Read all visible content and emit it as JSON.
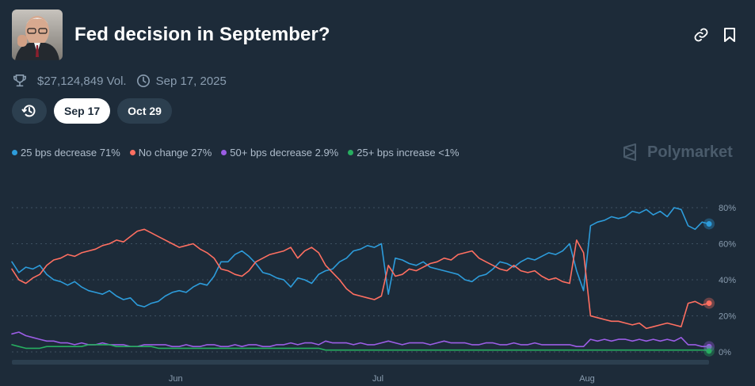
{
  "market": {
    "title": "Fed decision in September?",
    "volume": "$27,124,849 Vol.",
    "end_date": "Sep 17, 2025"
  },
  "tabs": [
    {
      "label": "Sep 17",
      "active": true
    },
    {
      "label": "Oct 29",
      "active": false
    }
  ],
  "legend": [
    {
      "label": "25 bps decrease 71%",
      "color": "#2d9cdb"
    },
    {
      "label": "No change 27%",
      "color": "#ff6f61"
    },
    {
      "label": "50+ bps decrease 2.9%",
      "color": "#9b5de5"
    },
    {
      "label": "25+ bps increase <1%",
      "color": "#27ae60"
    }
  ],
  "brand": "Polymarket",
  "icons": {
    "volume": "trophy-icon",
    "date": "clock-icon",
    "history": "history-icon",
    "link": "link-icon",
    "bookmark": "bookmark-icon",
    "brand": "polymarket-logo-icon"
  },
  "chart_data": {
    "type": "line",
    "x_ticks": [
      "Jun",
      "Jul",
      "Aug"
    ],
    "y_ticks": [
      "80%",
      "60%",
      "40%",
      "20%",
      "0%"
    ],
    "ylim": [
      0,
      80
    ],
    "grid": "horizontal dotted",
    "x_index_range": [
      0,
      100
    ],
    "x_tick_positions": [
      23.5,
      52.5,
      82.5
    ],
    "series": [
      {
        "name": "25 bps decrease",
        "color": "#2d9cdb",
        "final_value": 71,
        "x": [
          0,
          1,
          2,
          3,
          4,
          5,
          6,
          7,
          8,
          9,
          10,
          11,
          12,
          13,
          14,
          15,
          16,
          17,
          18,
          19,
          20,
          21,
          22,
          23,
          24,
          25,
          26,
          27,
          28,
          29,
          30,
          31,
          32,
          33,
          34,
          35,
          36,
          37,
          38,
          39,
          40,
          41,
          42,
          43,
          44,
          45,
          46,
          47,
          48,
          49,
          50,
          51,
          52,
          53,
          54,
          55,
          56,
          57,
          58,
          59,
          60,
          61,
          62,
          63,
          64,
          65,
          66,
          67,
          68,
          69,
          70,
          71,
          72,
          73,
          74,
          75,
          76,
          77,
          78,
          79,
          80,
          81,
          82,
          83,
          84,
          85,
          86,
          87,
          88,
          89,
          90,
          91,
          92,
          93,
          94,
          95,
          96,
          97,
          98,
          99,
          100
        ],
        "values": [
          50,
          44,
          47,
          46,
          48,
          43,
          40,
          39,
          37,
          39,
          36,
          34,
          33,
          32,
          34,
          31,
          29,
          30,
          26,
          25,
          27,
          28,
          31,
          33,
          34,
          33,
          36,
          38,
          37,
          42,
          50,
          50,
          54,
          56,
          53,
          49,
          44,
          43,
          41,
          40,
          36,
          41,
          40,
          38,
          43,
          45,
          46,
          50,
          52,
          56,
          57,
          59,
          58,
          60,
          32,
          52,
          51,
          49,
          48,
          50,
          47,
          46,
          45,
          44,
          43,
          40,
          39,
          42,
          43,
          46,
          50,
          49,
          47,
          50,
          52,
          51,
          53,
          55,
          54,
          56,
          60,
          45,
          34,
          70,
          72,
          73,
          75,
          74,
          75,
          78,
          77,
          79,
          76,
          78,
          75,
          80,
          79,
          70,
          68,
          72,
          71
        ]
      },
      {
        "name": "No change",
        "color": "#ff6f61",
        "final_value": 27,
        "x": [
          0,
          1,
          2,
          3,
          4,
          5,
          6,
          7,
          8,
          9,
          10,
          11,
          12,
          13,
          14,
          15,
          16,
          17,
          18,
          19,
          20,
          21,
          22,
          23,
          24,
          25,
          26,
          27,
          28,
          29,
          30,
          31,
          32,
          33,
          34,
          35,
          36,
          37,
          38,
          39,
          40,
          41,
          42,
          43,
          44,
          45,
          46,
          47,
          48,
          49,
          50,
          51,
          52,
          53,
          54,
          55,
          56,
          57,
          58,
          59,
          60,
          61,
          62,
          63,
          64,
          65,
          66,
          67,
          68,
          69,
          70,
          71,
          72,
          73,
          74,
          75,
          76,
          77,
          78,
          79,
          80,
          81,
          82,
          83,
          84,
          85,
          86,
          87,
          88,
          89,
          90,
          91,
          92,
          93,
          94,
          95,
          96,
          97,
          98,
          99,
          100
        ],
        "values": [
          46,
          40,
          38,
          41,
          43,
          48,
          51,
          52,
          54,
          53,
          55,
          56,
          57,
          59,
          60,
          62,
          61,
          64,
          67,
          68,
          66,
          64,
          62,
          60,
          58,
          59,
          60,
          57,
          55,
          52,
          46,
          45,
          43,
          42,
          45,
          50,
          52,
          54,
          55,
          56,
          58,
          52,
          56,
          58,
          55,
          48,
          44,
          40,
          35,
          32,
          31,
          30,
          29,
          31,
          48,
          42,
          43,
          46,
          45,
          47,
          49,
          50,
          52,
          51,
          54,
          55,
          56,
          52,
          50,
          48,
          46,
          45,
          48,
          45,
          44,
          45,
          42,
          40,
          41,
          39,
          38,
          62,
          55,
          20,
          19,
          18,
          17,
          17,
          16,
          15,
          16,
          13,
          14,
          15,
          16,
          15,
          14,
          27,
          28,
          26,
          27
        ]
      },
      {
        "name": "50+ bps decrease",
        "color": "#9b5de5",
        "final_value": 2.9,
        "x": [
          0,
          1,
          2,
          3,
          4,
          5,
          6,
          7,
          8,
          9,
          10,
          11,
          12,
          13,
          14,
          15,
          16,
          17,
          18,
          19,
          20,
          21,
          22,
          23,
          24,
          25,
          26,
          27,
          28,
          29,
          30,
          31,
          32,
          33,
          34,
          35,
          36,
          37,
          38,
          39,
          40,
          41,
          42,
          43,
          44,
          45,
          46,
          47,
          48,
          49,
          50,
          51,
          52,
          53,
          54,
          55,
          56,
          57,
          58,
          59,
          60,
          61,
          62,
          63,
          64,
          65,
          66,
          67,
          68,
          69,
          70,
          71,
          72,
          73,
          74,
          75,
          76,
          77,
          78,
          79,
          80,
          81,
          82,
          83,
          84,
          85,
          86,
          87,
          88,
          89,
          90,
          91,
          92,
          93,
          94,
          95,
          96,
          97,
          98,
          99,
          100
        ],
        "values": [
          10,
          11,
          9,
          8,
          7,
          6,
          6,
          5,
          5,
          4,
          5,
          4,
          4,
          5,
          4,
          4,
          4,
          3,
          3,
          4,
          4,
          4,
          4,
          3,
          3,
          4,
          3,
          3,
          4,
          4,
          3,
          3,
          4,
          3,
          4,
          4,
          3,
          3,
          4,
          4,
          5,
          4,
          5,
          5,
          4,
          6,
          5,
          5,
          5,
          4,
          5,
          4,
          4,
          5,
          6,
          5,
          4,
          5,
          5,
          5,
          4,
          5,
          6,
          5,
          5,
          5,
          4,
          4,
          5,
          5,
          4,
          4,
          5,
          4,
          4,
          5,
          4,
          4,
          4,
          4,
          4,
          3,
          3,
          7,
          6,
          7,
          6,
          7,
          7,
          6,
          7,
          6,
          7,
          6,
          7,
          6,
          8,
          4,
          4,
          3,
          3
        ]
      },
      {
        "name": "25+ bps increase",
        "color": "#27ae60",
        "final_value": 0.5,
        "x": [
          0,
          1,
          2,
          3,
          4,
          5,
          6,
          7,
          8,
          9,
          10,
          11,
          12,
          13,
          14,
          15,
          16,
          17,
          18,
          19,
          20,
          21,
          22,
          23,
          24,
          25,
          26,
          27,
          28,
          29,
          30,
          31,
          32,
          33,
          34,
          35,
          36,
          37,
          38,
          39,
          40,
          41,
          42,
          43,
          44,
          45,
          46,
          47,
          48,
          49,
          50,
          51,
          52,
          53,
          54,
          55,
          56,
          57,
          58,
          59,
          60,
          61,
          62,
          63,
          64,
          65,
          66,
          67,
          68,
          69,
          70,
          71,
          72,
          73,
          74,
          75,
          76,
          77,
          78,
          79,
          80,
          81,
          82,
          83,
          84,
          85,
          86,
          87,
          88,
          89,
          90,
          91,
          92,
          93,
          94,
          95,
          96,
          97,
          98,
          99,
          100
        ],
        "values": [
          4,
          3,
          2,
          2,
          2,
          3,
          3,
          3,
          3,
          3,
          3,
          4,
          4,
          4,
          4,
          3,
          3,
          3,
          3,
          3,
          3,
          2,
          2,
          2,
          2,
          2,
          2,
          2,
          2,
          2,
          2,
          2,
          2,
          2,
          2,
          2,
          2,
          2,
          2,
          2,
          2,
          2,
          2,
          2,
          2,
          1,
          1,
          1,
          1,
          1,
          1,
          1,
          1,
          1,
          1,
          1,
          1,
          1,
          1,
          1,
          1,
          1,
          1,
          1,
          1,
          1,
          1,
          1,
          1,
          1,
          1,
          1,
          1,
          1,
          1,
          1,
          1,
          1,
          1,
          1,
          1,
          1,
          1,
          1,
          1,
          1,
          1,
          1,
          1,
          1,
          1,
          1,
          1,
          1,
          1,
          1,
          1,
          1,
          1,
          1,
          1
        ]
      }
    ]
  }
}
